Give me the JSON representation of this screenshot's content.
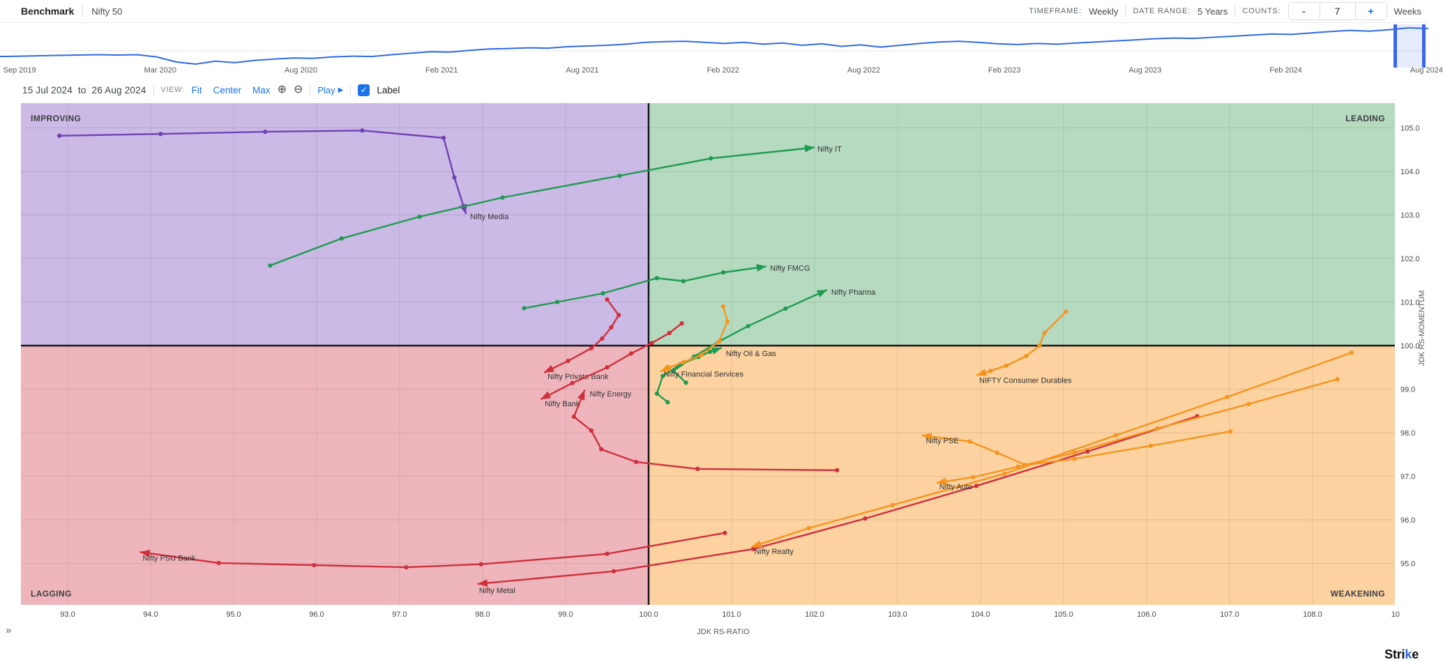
{
  "topbar": {
    "benchmark_label": "Benchmark",
    "benchmark_value": "Nifty 50",
    "timeframe_label": "TIMEFRAME:",
    "timeframe_value": "Weekly",
    "date_range_label": "DATE RANGE:",
    "date_range_value": "5 Years",
    "counts_label": "COUNTS:",
    "counts_minus": "-",
    "counts_value": "7",
    "counts_plus": "+",
    "counts_unit": "Weeks"
  },
  "timeline": {
    "line_color": "#2f6be4",
    "ticks": [
      "Sep 2019",
      "Mar 2020",
      "Aug 2020",
      "Feb 2021",
      "Aug 2021",
      "Feb 2022",
      "Aug 2022",
      "Feb 2023",
      "Aug 2023",
      "Feb 2024",
      "Aug 2024"
    ],
    "tick_start_frac": 0.0137,
    "tick_step_frac": 0.0985,
    "selection": {
      "start_frac": 0.9756,
      "end_frac": 0.998
    },
    "sparkline": [
      0.21,
      0.22,
      0.23,
      0.24,
      0.25,
      0.26,
      0.25,
      0.26,
      0.2,
      0.06,
      0.0,
      0.08,
      0.04,
      0.1,
      0.14,
      0.17,
      0.16,
      0.2,
      0.22,
      0.21,
      0.26,
      0.3,
      0.34,
      0.33,
      0.38,
      0.42,
      0.43,
      0.45,
      0.44,
      0.48,
      0.5,
      0.52,
      0.55,
      0.6,
      0.62,
      0.63,
      0.6,
      0.57,
      0.6,
      0.55,
      0.58,
      0.52,
      0.56,
      0.49,
      0.53,
      0.47,
      0.52,
      0.57,
      0.61,
      0.63,
      0.6,
      0.56,
      0.54,
      0.57,
      0.55,
      0.58,
      0.61,
      0.64,
      0.67,
      0.7,
      0.72,
      0.71,
      0.74,
      0.77,
      0.8,
      0.83,
      0.82,
      0.86,
      0.9,
      0.93,
      0.91,
      0.95,
      1.0,
      0.98
    ]
  },
  "controls": {
    "range_start": "15 Jul 2024",
    "range_to": "to",
    "range_end": "26 Aug 2024",
    "view_label": "VIEW:",
    "fit": "Fit",
    "center": "Center",
    "max": "Max",
    "play": "Play",
    "label_checkbox": "Label"
  },
  "icons": {
    "zoom_in": "⊕",
    "zoom_out": "⊖",
    "play_triangle": "▶",
    "check": "✓",
    "expander": "»"
  },
  "chart_data": {
    "type": "scatter",
    "subtype": "relative-rotation-graph-trails",
    "xlabel": "JDK RS-RATIO",
    "ylabel": "JDK RS-MOMENTUM",
    "xlim": [
      92.437,
      108.992
    ],
    "ylim": [
      94.048,
      105.568
    ],
    "center": [
      100.0,
      100.0
    ],
    "grid_x": [
      93,
      94,
      95,
      96,
      97,
      98,
      99,
      100,
      101,
      102,
      103,
      104,
      105,
      106,
      107,
      108
    ],
    "grid_y": [
      95,
      96,
      97,
      98,
      99,
      100,
      101,
      102,
      103,
      104,
      105
    ],
    "x_ticks": [
      {
        "v": 93,
        "label": "93.0"
      },
      {
        "v": 94,
        "label": "94.0"
      },
      {
        "v": 95,
        "label": "95.0"
      },
      {
        "v": 96,
        "label": "96.0"
      },
      {
        "v": 97,
        "label": "97.0"
      },
      {
        "v": 98,
        "label": "98.0"
      },
      {
        "v": 99,
        "label": "99.0"
      },
      {
        "v": 100,
        "label": "100.0"
      },
      {
        "v": 101,
        "label": "101.0"
      },
      {
        "v": 102,
        "label": "102.0"
      },
      {
        "v": 103,
        "label": "103.0"
      },
      {
        "v": 104,
        "label": "104.0"
      },
      {
        "v": 105,
        "label": "105.0"
      },
      {
        "v": 106,
        "label": "106.0"
      },
      {
        "v": 107,
        "label": "107.0"
      },
      {
        "v": 108,
        "label": "108.0"
      },
      {
        "v": 109,
        "label": "10"
      }
    ],
    "y_ticks": [
      {
        "v": 95,
        "label": "95.0"
      },
      {
        "v": 96,
        "label": "96.0"
      },
      {
        "v": 97,
        "label": "97.0"
      },
      {
        "v": 98,
        "label": "98.0"
      },
      {
        "v": 99,
        "label": "99.0"
      },
      {
        "v": 100,
        "label": "100.0"
      },
      {
        "v": 101,
        "label": "101.0"
      },
      {
        "v": 102,
        "label": "102.0"
      },
      {
        "v": 103,
        "label": "103.0"
      },
      {
        "v": 104,
        "label": "104.0"
      },
      {
        "v": 105,
        "label": "105.0"
      }
    ],
    "quadrants": [
      {
        "id": "improving",
        "label": "IMPROVING",
        "color": "#cbb9e6",
        "pos": "top-left"
      },
      {
        "id": "leading",
        "label": "LEADING",
        "color": "#b5dac0",
        "pos": "top-right"
      },
      {
        "id": "lagging",
        "label": "LAGGING",
        "color": "#eeb6bc",
        "pos": "bottom-left"
      },
      {
        "id": "weakening",
        "label": "WEAKENING",
        "color": "#fbd2a0",
        "pos": "bottom-right"
      }
    ],
    "series": [
      {
        "name": "Nifty Media",
        "color": "#6f42b3",
        "label_dx": 6,
        "label_dy": 7,
        "points": [
          [
            92.9,
            104.82
          ],
          [
            94.12,
            104.86
          ],
          [
            95.38,
            104.91
          ],
          [
            96.55,
            104.94
          ],
          [
            97.53,
            104.77
          ],
          [
            97.66,
            103.86
          ],
          [
            97.8,
            103.02
          ]
        ]
      },
      {
        "name": "Nifty IT",
        "color": "#1e9b51",
        "label_dx": 4,
        "label_dy": 6,
        "points": [
          [
            95.44,
            101.84
          ],
          [
            96.3,
            102.46
          ],
          [
            97.24,
            102.96
          ],
          [
            98.24,
            103.4
          ],
          [
            99.65,
            103.9
          ],
          [
            100.75,
            104.3
          ],
          [
            102.0,
            104.55
          ]
        ]
      },
      {
        "name": "Nifty FMCG",
        "color": "#1e9b51",
        "label_dx": 5,
        "label_dy": 6,
        "points": [
          [
            98.5,
            100.86
          ],
          [
            98.9,
            101.0
          ],
          [
            99.45,
            101.2
          ],
          [
            100.1,
            101.55
          ],
          [
            100.42,
            101.48
          ],
          [
            100.9,
            101.68
          ],
          [
            101.42,
            101.82
          ]
        ]
      },
      {
        "name": "Nifty Pharma",
        "color": "#1e9b51",
        "label_dx": 6,
        "label_dy": 7,
        "points": [
          [
            100.45,
            99.15
          ],
          [
            100.3,
            99.42
          ],
          [
            100.55,
            99.75
          ],
          [
            100.85,
            100.1
          ],
          [
            101.2,
            100.45
          ],
          [
            101.65,
            100.85
          ],
          [
            102.15,
            101.28
          ]
        ]
      },
      {
        "name": "Nifty Oil & Gas",
        "color": "#1e9b51",
        "label_dx": 6,
        "label_dy": 12,
        "points": [
          [
            100.23,
            98.7
          ],
          [
            100.1,
            98.9
          ],
          [
            100.17,
            99.3
          ],
          [
            100.38,
            99.57
          ],
          [
            100.6,
            99.74
          ],
          [
            100.74,
            99.86
          ],
          [
            100.88,
            99.95
          ]
        ]
      },
      {
        "name": "Nifty Financial Services",
        "color": "#f6941e",
        "label_dx": 5,
        "label_dy": 7,
        "points": [
          [
            100.9,
            100.9
          ],
          [
            100.95,
            100.55
          ],
          [
            100.85,
            100.1
          ],
          [
            100.63,
            99.78
          ],
          [
            100.42,
            99.62
          ],
          [
            100.25,
            99.5
          ],
          [
            100.14,
            99.4
          ]
        ]
      },
      {
        "name": "Nifty Private Bank",
        "color": "#d02f3d",
        "label_dx": 5,
        "label_dy": 9,
        "points": [
          [
            99.5,
            101.06
          ],
          [
            99.64,
            100.7
          ],
          [
            99.55,
            100.42
          ],
          [
            99.44,
            100.16
          ],
          [
            99.31,
            99.94
          ],
          [
            99.03,
            99.65
          ],
          [
            98.74,
            99.38
          ]
        ]
      },
      {
        "name": "Nifty Bank",
        "color": "#d02f3d",
        "label_dx": 6,
        "label_dy": 10,
        "points": [
          [
            100.4,
            100.51
          ],
          [
            100.25,
            100.29
          ],
          [
            100.04,
            100.06
          ],
          [
            99.79,
            99.82
          ],
          [
            99.5,
            99.5
          ],
          [
            99.08,
            99.14
          ],
          [
            98.7,
            98.77
          ]
        ]
      },
      {
        "name": "Nifty Energy",
        "color": "#d02f3d",
        "label_dx": 7,
        "label_dy": 9,
        "points": [
          [
            102.27,
            97.14
          ],
          [
            100.59,
            97.17
          ],
          [
            99.85,
            97.33
          ],
          [
            99.43,
            97.62
          ],
          [
            99.31,
            98.05
          ],
          [
            99.1,
            98.37
          ],
          [
            99.23,
            98.98
          ]
        ]
      },
      {
        "name": "Nifty PSU Bank",
        "color": "#d02f3d",
        "label_dx": 4,
        "label_dy": 12,
        "points": [
          [
            100.92,
            95.7
          ],
          [
            99.5,
            95.22
          ],
          [
            97.98,
            94.98
          ],
          [
            97.08,
            94.91
          ],
          [
            95.97,
            94.96
          ],
          [
            94.82,
            95.01
          ],
          [
            93.87,
            95.26
          ]
        ]
      },
      {
        "name": "Nifty Metal",
        "color": "#d02f3d",
        "label_dx": 2,
        "label_dy": 13,
        "points": [
          [
            106.61,
            98.38
          ],
          [
            105.29,
            97.57
          ],
          [
            103.95,
            96.78
          ],
          [
            102.61,
            96.03
          ],
          [
            101.26,
            95.33
          ],
          [
            99.58,
            94.82
          ],
          [
            97.94,
            94.53
          ]
        ]
      },
      {
        "name": "Nifty Realty",
        "color": "#f6941e",
        "label_dx": 4,
        "label_dy": 10,
        "points": [
          [
            108.47,
            99.84
          ],
          [
            106.97,
            98.82
          ],
          [
            105.63,
            97.94
          ],
          [
            104.29,
            97.06
          ],
          [
            102.94,
            96.34
          ],
          [
            101.93,
            95.81
          ],
          [
            101.24,
            95.38
          ]
        ]
      },
      {
        "name": "Nifty Auto",
        "color": "#f6941e",
        "label_dx": 4,
        "label_dy": 9,
        "points": [
          [
            108.3,
            99.23
          ],
          [
            107.23,
            98.66
          ],
          [
            106.13,
            98.1
          ],
          [
            105.13,
            97.54
          ],
          [
            104.45,
            97.22
          ],
          [
            103.91,
            96.98
          ],
          [
            103.47,
            96.85
          ]
        ]
      },
      {
        "name": "Nifty PSE",
        "color": "#f6941e",
        "label_dx": 6,
        "label_dy": 11,
        "points": [
          [
            107.01,
            98.03
          ],
          [
            106.05,
            97.7
          ],
          [
            105.13,
            97.4
          ],
          [
            104.54,
            97.26
          ],
          [
            104.2,
            97.54
          ],
          [
            103.87,
            97.8
          ],
          [
            103.29,
            97.94
          ]
        ]
      },
      {
        "name": "NIFTY Consumer Durables",
        "color": "#f6941e",
        "label_dx": 4,
        "label_dy": 11,
        "points": [
          [
            105.03,
            100.78
          ],
          [
            104.77,
            100.29
          ],
          [
            104.71,
            100.0
          ],
          [
            104.55,
            99.76
          ],
          [
            104.31,
            99.54
          ],
          [
            104.12,
            99.42
          ],
          [
            103.95,
            99.32
          ]
        ]
      }
    ]
  },
  "footer": {
    "logo_prefix": "Stri",
    "logo_k": "k",
    "logo_suffix": "e"
  }
}
